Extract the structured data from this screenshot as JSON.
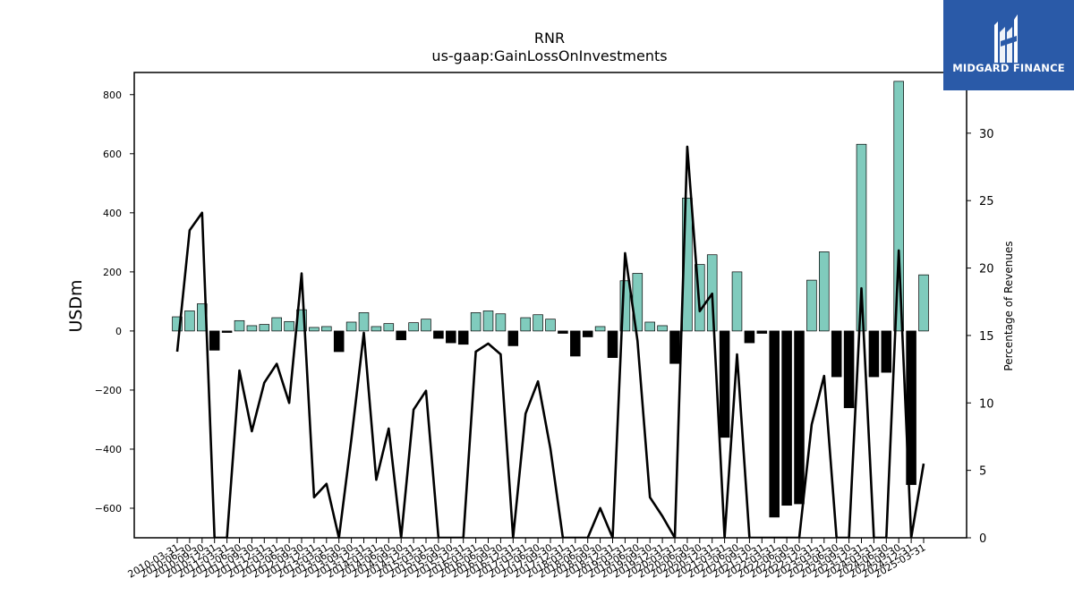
{
  "chart_data": {
    "type": "bar",
    "title": "RNR",
    "subtitle": "us-gaap:GainLossOnInvestments",
    "ylabel": "USDm",
    "y2label": "Percentage of Revenues",
    "ylim": [
      -700,
      875
    ],
    "y2lim": [
      0,
      34.5
    ],
    "yticks": [
      -600,
      -400,
      -200,
      0,
      200,
      400,
      600,
      800
    ],
    "y2ticks": [
      0,
      5,
      10,
      15,
      20,
      25,
      30
    ],
    "colors": {
      "positive": "#80cbbd",
      "negative": "#000000",
      "line": "#000000"
    },
    "categories": [
      "2010-03-31",
      "2010-06-30",
      "2010-09-30",
      "2010-12-31",
      "2011-03-31",
      "2011-06-30",
      "2011-09-30",
      "2011-12-31",
      "2012-03-31",
      "2012-06-30",
      "2012-09-30",
      "2012-12-31",
      "2013-03-31",
      "2013-06-30",
      "2013-09-30",
      "2013-12-31",
      "2014-03-31",
      "2014-06-30",
      "2014-09-30",
      "2014-12-31",
      "2015-03-31",
      "2015-06-30",
      "2015-09-30",
      "2015-12-31",
      "2016-03-31",
      "2016-06-30",
      "2016-09-30",
      "2016-12-31",
      "2017-03-31",
      "2017-06-30",
      "2017-09-30",
      "2017-12-31",
      "2018-03-31",
      "2018-06-30",
      "2018-09-30",
      "2018-12-31",
      "2019-03-31",
      "2019-06-30",
      "2019-09-30",
      "2019-12-31",
      "2020-03-31",
      "2020-06-30",
      "2020-09-30",
      "2020-12-31",
      "2021-03-31",
      "2021-06-30",
      "2021-09-30",
      "2021-12-31",
      "2022-03-31",
      "2022-06-30",
      "2022-09-30",
      "2022-12-31",
      "2023-03-31",
      "2023-06-30",
      "2023-09-30",
      "2023-12-31",
      "2024-03-31",
      "2024-06-30",
      "2024-09-30",
      "2024-12-31",
      "2025-03-31"
    ],
    "values": [
      48,
      68,
      92,
      -65,
      -5,
      35,
      18,
      22,
      45,
      32,
      72,
      12,
      15,
      -70,
      30,
      62,
      15,
      25,
      -30,
      28,
      40,
      -25,
      -40,
      -45,
      62,
      68,
      58,
      -50,
      45,
      55,
      40,
      -8,
      -85,
      -20,
      15,
      -90,
      170,
      195,
      30,
      18,
      -110,
      450,
      225,
      258,
      -360,
      200,
      -40,
      -8,
      -630,
      -590,
      -585,
      172,
      268,
      -155,
      -260,
      632,
      -155,
      -140,
      845,
      -520,
      190
    ],
    "series": [
      {
        "axis": "right",
        "values": [
          13.8,
          22.8,
          24.1,
          0,
          0,
          12.4,
          7.9,
          11.5,
          12.9,
          10.0,
          19.6,
          3.0,
          4.0,
          0,
          7.3,
          15.2,
          4.3,
          8.1,
          0,
          9.5,
          10.9,
          0,
          0,
          0,
          13.8,
          14.4,
          13.6,
          0,
          9.2,
          11.6,
          6.6,
          0,
          0,
          0,
          2.2,
          0,
          21.1,
          14.6,
          3.0,
          1.6,
          0,
          29.0,
          16.8,
          18.1,
          0,
          13.6,
          0,
          0,
          0,
          0,
          0,
          8.4,
          12.0,
          0,
          0,
          18.5,
          0,
          0,
          21.3,
          0,
          5.5
        ]
      }
    ]
  },
  "logo": {
    "text": "MIDGARD FINANCE"
  }
}
